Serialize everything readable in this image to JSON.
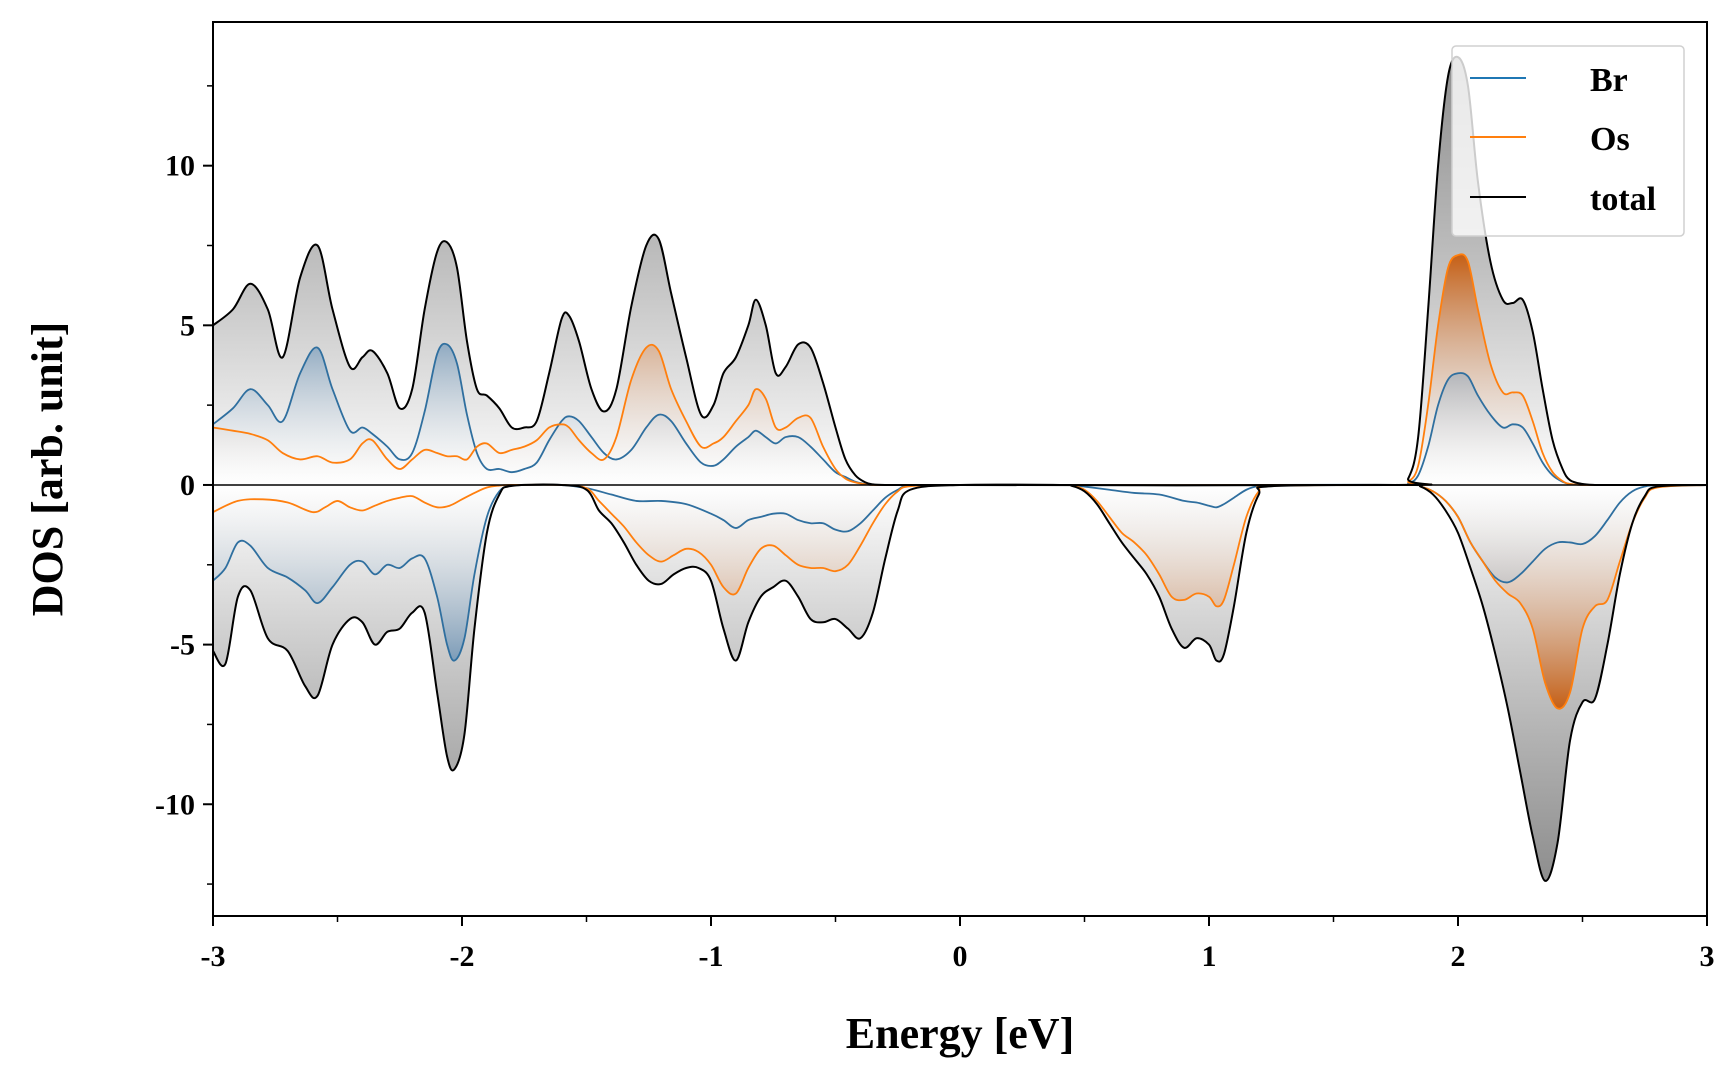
{
  "chart_data": {
    "type": "area",
    "xlabel": "Energy [eV]",
    "ylabel": "DOS [arb. unit]",
    "xlim": [
      -3,
      3
    ],
    "ylim": [
      -13.5,
      14.5
    ],
    "xticks": [
      -3,
      -2,
      -1,
      0,
      1,
      2,
      3
    ],
    "xtick_labels": [
      "-3",
      "-2",
      "-1",
      "0",
      "1",
      "2",
      "3"
    ],
    "yticks": [
      -10,
      -5,
      0,
      5,
      10
    ],
    "ytick_labels": [
      "-10",
      "-5",
      "0",
      "5",
      "10"
    ],
    "grid": false,
    "legend": {
      "placement": "top-right",
      "entries": [
        {
          "label": "Br",
          "color": "#1f77b4"
        },
        {
          "label": "Os",
          "color": "#ff7f0e"
        },
        {
          "label": "total",
          "color": "#000000"
        }
      ]
    },
    "series": [
      {
        "name": "Br",
        "color": "#1f77b4",
        "fill": "#5b8fb8",
        "spin": "up",
        "x": [
          -3.0,
          -2.92,
          -2.85,
          -2.78,
          -2.72,
          -2.65,
          -2.58,
          -2.52,
          -2.45,
          -2.4,
          -2.36,
          -2.3,
          -2.25,
          -2.2,
          -2.15,
          -2.1,
          -2.06,
          -2.02,
          -1.98,
          -1.94,
          -1.9,
          -1.85,
          -1.8,
          -1.75,
          -1.7,
          -1.65,
          -1.6,
          -1.57,
          -1.53,
          -1.48,
          -1.43,
          -1.38,
          -1.32,
          -1.26,
          -1.21,
          -1.16,
          -1.1,
          -1.04,
          -0.99,
          -0.95,
          -0.9,
          -0.85,
          -0.82,
          -0.78,
          -0.74,
          -0.7,
          -0.65,
          -0.6,
          -0.55,
          -0.5,
          -0.46,
          -0.42,
          -0.38,
          -0.35,
          -0.3,
          -0.25,
          -0.2,
          0.0,
          1.75,
          1.8,
          1.84,
          1.88,
          1.92,
          1.96,
          2.0,
          2.04,
          2.08,
          2.13,
          2.18,
          2.22,
          2.26,
          2.3,
          2.34,
          2.38,
          2.42,
          2.45,
          2.5,
          2.55,
          2.6,
          3.0
        ],
        "y": [
          1.9,
          2.4,
          3.0,
          2.5,
          2.0,
          3.5,
          4.3,
          3.0,
          1.7,
          1.8,
          1.6,
          1.2,
          0.8,
          1.0,
          2.3,
          4.1,
          4.4,
          3.8,
          2.2,
          1.0,
          0.5,
          0.5,
          0.4,
          0.5,
          0.7,
          1.4,
          2.0,
          2.15,
          2.0,
          1.5,
          1.0,
          0.8,
          1.1,
          1.8,
          2.2,
          2.0,
          1.3,
          0.7,
          0.6,
          0.8,
          1.2,
          1.5,
          1.7,
          1.5,
          1.3,
          1.5,
          1.5,
          1.2,
          0.8,
          0.4,
          0.25,
          0.1,
          0.03,
          0.0,
          0.0,
          0.0,
          0.0,
          0.0,
          0.0,
          0.05,
          0.3,
          1.2,
          2.5,
          3.3,
          3.5,
          3.4,
          2.8,
          2.2,
          1.8,
          1.9,
          1.8,
          1.3,
          0.7,
          0.3,
          0.1,
          0.03,
          0.0,
          0.0,
          0.0,
          0.0
        ]
      },
      {
        "name": "Os",
        "color": "#ff7f0e",
        "fill": "#d2691e",
        "spin": "up",
        "x": [
          -3.0,
          -2.92,
          -2.85,
          -2.78,
          -2.72,
          -2.65,
          -2.58,
          -2.52,
          -2.45,
          -2.4,
          -2.36,
          -2.3,
          -2.25,
          -2.2,
          -2.15,
          -2.1,
          -2.06,
          -2.02,
          -1.98,
          -1.94,
          -1.9,
          -1.85,
          -1.8,
          -1.75,
          -1.7,
          -1.65,
          -1.6,
          -1.57,
          -1.53,
          -1.48,
          -1.43,
          -1.38,
          -1.32,
          -1.26,
          -1.21,
          -1.16,
          -1.1,
          -1.04,
          -0.99,
          -0.95,
          -0.9,
          -0.85,
          -0.82,
          -0.78,
          -0.74,
          -0.7,
          -0.65,
          -0.6,
          -0.55,
          -0.5,
          -0.46,
          -0.42,
          -0.38,
          -0.35,
          -0.3,
          -0.25,
          -0.2,
          0.0,
          1.75,
          1.8,
          1.84,
          1.88,
          1.92,
          1.96,
          2.0,
          2.04,
          2.08,
          2.13,
          2.18,
          2.22,
          2.26,
          2.3,
          2.34,
          2.38,
          2.42,
          2.45,
          2.5,
          2.55,
          2.6,
          3.0
        ],
        "y": [
          1.8,
          1.7,
          1.6,
          1.4,
          1.0,
          0.8,
          0.9,
          0.7,
          0.8,
          1.3,
          1.4,
          0.8,
          0.5,
          0.8,
          1.1,
          1.0,
          0.9,
          0.9,
          0.8,
          1.2,
          1.3,
          1.0,
          1.1,
          1.2,
          1.4,
          1.8,
          1.9,
          1.8,
          1.4,
          1.0,
          0.8,
          1.5,
          3.3,
          4.3,
          4.2,
          3.0,
          2.0,
          1.2,
          1.3,
          1.5,
          2.0,
          2.5,
          3.0,
          2.7,
          1.8,
          1.8,
          2.1,
          2.1,
          1.2,
          0.5,
          0.2,
          0.08,
          0.02,
          0.0,
          0.0,
          0.0,
          0.0,
          0.0,
          0.0,
          0.1,
          0.6,
          2.5,
          5.0,
          6.8,
          7.2,
          7.0,
          5.5,
          3.8,
          2.9,
          2.9,
          2.8,
          2.0,
          1.0,
          0.4,
          0.12,
          0.03,
          0.0,
          0.0,
          0.0,
          0.0
        ]
      },
      {
        "name": "total",
        "color": "#000000",
        "fill": "#8c8c8c",
        "spin": "up",
        "x": [
          -3.0,
          -2.92,
          -2.85,
          -2.78,
          -2.72,
          -2.65,
          -2.58,
          -2.52,
          -2.45,
          -2.4,
          -2.36,
          -2.3,
          -2.25,
          -2.2,
          -2.15,
          -2.1,
          -2.06,
          -2.02,
          -1.98,
          -1.94,
          -1.9,
          -1.85,
          -1.8,
          -1.75,
          -1.7,
          -1.65,
          -1.6,
          -1.57,
          -1.53,
          -1.48,
          -1.43,
          -1.38,
          -1.32,
          -1.26,
          -1.21,
          -1.16,
          -1.1,
          -1.04,
          -0.99,
          -0.95,
          -0.9,
          -0.85,
          -0.82,
          -0.78,
          -0.74,
          -0.7,
          -0.65,
          -0.6,
          -0.55,
          -0.5,
          -0.46,
          -0.42,
          -0.38,
          -0.35,
          -0.3,
          -0.25,
          -0.2,
          0.0,
          1.75,
          1.8,
          1.84,
          1.88,
          1.92,
          1.96,
          2.0,
          2.04,
          2.08,
          2.13,
          2.18,
          2.22,
          2.26,
          2.3,
          2.34,
          2.38,
          2.42,
          2.45,
          2.5,
          2.55,
          2.6,
          3.0
        ],
        "y": [
          5.0,
          5.5,
          6.3,
          5.5,
          4.0,
          6.5,
          7.5,
          5.5,
          3.7,
          4.0,
          4.2,
          3.5,
          2.4,
          3.0,
          5.5,
          7.3,
          7.6,
          6.8,
          4.5,
          3.0,
          2.8,
          2.4,
          1.8,
          1.8,
          2.0,
          3.5,
          5.2,
          5.3,
          4.5,
          3.0,
          2.3,
          3.0,
          5.6,
          7.5,
          7.7,
          6.0,
          4.0,
          2.2,
          2.5,
          3.5,
          4.0,
          5.0,
          5.8,
          5.0,
          3.5,
          3.7,
          4.4,
          4.3,
          3.2,
          1.8,
          0.8,
          0.3,
          0.08,
          0.02,
          0.0,
          0.0,
          0.0,
          0.0,
          0.0,
          0.2,
          1.5,
          5.5,
          10.0,
          12.8,
          13.4,
          12.5,
          9.5,
          7.0,
          5.8,
          5.7,
          5.8,
          4.8,
          3.0,
          1.4,
          0.5,
          0.15,
          0.03,
          0.0,
          0.0,
          0.0
        ]
      },
      {
        "name": "Br",
        "color": "#1f77b4",
        "fill": "#5b8fb8",
        "spin": "down",
        "x": [
          -3.0,
          -2.95,
          -2.9,
          -2.85,
          -2.78,
          -2.7,
          -2.63,
          -2.58,
          -2.52,
          -2.45,
          -2.4,
          -2.35,
          -2.3,
          -2.25,
          -2.2,
          -2.15,
          -2.1,
          -2.06,
          -2.03,
          -1.99,
          -1.95,
          -1.9,
          -1.85,
          -1.8,
          -1.7,
          -1.6,
          -1.5,
          -1.4,
          -1.3,
          -1.2,
          -1.1,
          -1.0,
          -0.95,
          -0.9,
          -0.85,
          -0.8,
          -0.75,
          -0.7,
          -0.65,
          -0.6,
          -0.55,
          -0.5,
          -0.45,
          -0.4,
          -0.35,
          -0.3,
          -0.25,
          -0.2,
          0.0,
          0.4,
          0.45,
          0.5,
          0.6,
          0.7,
          0.8,
          0.9,
          0.95,
          1.0,
          1.03,
          1.06,
          1.1,
          1.15,
          1.2,
          1.25,
          1.8,
          1.85,
          1.9,
          1.95,
          2.0,
          2.05,
          2.1,
          2.15,
          2.2,
          2.25,
          2.3,
          2.35,
          2.4,
          2.45,
          2.5,
          2.55,
          2.6,
          2.65,
          2.7,
          2.75,
          2.8,
          3.0
        ],
        "y": [
          -3.0,
          -2.6,
          -1.8,
          -1.9,
          -2.6,
          -2.9,
          -3.3,
          -3.7,
          -3.2,
          -2.5,
          -2.4,
          -2.8,
          -2.5,
          -2.6,
          -2.3,
          -2.3,
          -3.5,
          -5.0,
          -5.5,
          -4.8,
          -2.8,
          -1.0,
          -0.2,
          -0.02,
          0.0,
          0.0,
          -0.1,
          -0.3,
          -0.5,
          -0.5,
          -0.6,
          -0.9,
          -1.1,
          -1.35,
          -1.1,
          -1.0,
          -0.9,
          -0.9,
          -1.1,
          -1.2,
          -1.2,
          -1.4,
          -1.45,
          -1.2,
          -0.8,
          -0.4,
          -0.15,
          -0.02,
          0.0,
          0.0,
          0.0,
          -0.05,
          -0.15,
          -0.25,
          -0.3,
          -0.5,
          -0.55,
          -0.65,
          -0.7,
          -0.6,
          -0.4,
          -0.15,
          -0.03,
          0.0,
          0.0,
          -0.05,
          -0.2,
          -0.5,
          -1.0,
          -1.8,
          -2.4,
          -2.9,
          -3.05,
          -2.8,
          -2.4,
          -2.0,
          -1.8,
          -1.8,
          -1.85,
          -1.6,
          -1.1,
          -0.55,
          -0.2,
          -0.05,
          -0.01,
          0.0
        ]
      },
      {
        "name": "Os",
        "color": "#ff7f0e",
        "fill": "#d2691e",
        "spin": "down",
        "x": [
          -3.0,
          -2.9,
          -2.8,
          -2.7,
          -2.6,
          -2.55,
          -2.5,
          -2.45,
          -2.4,
          -2.35,
          -2.3,
          -2.25,
          -2.2,
          -2.15,
          -2.1,
          -2.05,
          -2.0,
          -1.95,
          -1.9,
          -1.85,
          -1.8,
          -1.6,
          -1.5,
          -1.45,
          -1.4,
          -1.35,
          -1.3,
          -1.25,
          -1.2,
          -1.15,
          -1.1,
          -1.05,
          -1.0,
          -0.95,
          -0.9,
          -0.85,
          -0.8,
          -0.75,
          -0.7,
          -0.65,
          -0.6,
          -0.55,
          -0.5,
          -0.45,
          -0.4,
          -0.35,
          -0.3,
          -0.25,
          -0.2,
          0.0,
          0.4,
          0.45,
          0.5,
          0.55,
          0.6,
          0.65,
          0.7,
          0.75,
          0.8,
          0.85,
          0.9,
          0.95,
          1.0,
          1.03,
          1.06,
          1.1,
          1.15,
          1.2,
          1.25,
          1.8,
          1.85,
          1.9,
          1.95,
          2.0,
          2.05,
          2.1,
          2.15,
          2.2,
          2.25,
          2.3,
          2.35,
          2.4,
          2.45,
          2.5,
          2.55,
          2.6,
          2.65,
          2.7,
          2.75,
          2.8,
          3.0
        ],
        "y": [
          -0.85,
          -0.5,
          -0.45,
          -0.55,
          -0.85,
          -0.7,
          -0.5,
          -0.7,
          -0.8,
          -0.65,
          -0.5,
          -0.4,
          -0.35,
          -0.55,
          -0.7,
          -0.65,
          -0.45,
          -0.25,
          -0.08,
          -0.02,
          0.0,
          0.0,
          -0.1,
          -0.5,
          -0.9,
          -1.3,
          -1.8,
          -2.2,
          -2.4,
          -2.2,
          -2.0,
          -2.1,
          -2.5,
          -3.2,
          -3.4,
          -2.6,
          -2.0,
          -1.9,
          -2.2,
          -2.5,
          -2.6,
          -2.6,
          -2.7,
          -2.5,
          -1.9,
          -1.2,
          -0.6,
          -0.2,
          -0.04,
          0.0,
          0.0,
          -0.02,
          -0.15,
          -0.5,
          -1.0,
          -1.5,
          -1.8,
          -2.2,
          -2.8,
          -3.5,
          -3.6,
          -3.4,
          -3.5,
          -3.8,
          -3.6,
          -2.5,
          -1.0,
          -0.2,
          -0.03,
          0.0,
          -0.05,
          -0.2,
          -0.5,
          -1.0,
          -1.8,
          -2.4,
          -3.0,
          -3.4,
          -3.7,
          -4.5,
          -6.2,
          -7.0,
          -6.5,
          -4.5,
          -3.8,
          -3.6,
          -2.4,
          -1.2,
          -0.4,
          -0.08,
          0.0
        ]
      },
      {
        "name": "total",
        "color": "#000000",
        "fill": "#8c8c8c",
        "spin": "down",
        "x": [
          -3.0,
          -2.95,
          -2.9,
          -2.85,
          -2.78,
          -2.7,
          -2.63,
          -2.58,
          -2.52,
          -2.45,
          -2.4,
          -2.35,
          -2.3,
          -2.25,
          -2.2,
          -2.15,
          -2.1,
          -2.06,
          -2.03,
          -1.99,
          -1.95,
          -1.9,
          -1.85,
          -1.8,
          -1.6,
          -1.5,
          -1.45,
          -1.4,
          -1.35,
          -1.3,
          -1.25,
          -1.2,
          -1.15,
          -1.1,
          -1.05,
          -1.0,
          -0.95,
          -0.9,
          -0.85,
          -0.8,
          -0.75,
          -0.7,
          -0.65,
          -0.6,
          -0.55,
          -0.5,
          -0.45,
          -0.4,
          -0.35,
          -0.3,
          -0.25,
          -0.2,
          0.0,
          0.4,
          0.45,
          0.5,
          0.55,
          0.6,
          0.65,
          0.7,
          0.75,
          0.8,
          0.85,
          0.9,
          0.95,
          1.0,
          1.03,
          1.06,
          1.1,
          1.15,
          1.2,
          1.25,
          1.8,
          1.85,
          1.9,
          1.95,
          2.0,
          2.05,
          2.1,
          2.15,
          2.2,
          2.25,
          2.3,
          2.35,
          2.4,
          2.45,
          2.5,
          2.55,
          2.6,
          2.65,
          2.7,
          2.75,
          2.8,
          3.0
        ],
        "y": [
          -5.2,
          -5.6,
          -3.5,
          -3.3,
          -4.8,
          -5.2,
          -6.3,
          -6.6,
          -5.0,
          -4.2,
          -4.3,
          -5.0,
          -4.6,
          -4.5,
          -4.0,
          -4.0,
          -6.5,
          -8.5,
          -8.9,
          -7.8,
          -4.5,
          -1.5,
          -0.3,
          -0.03,
          0.0,
          -0.15,
          -0.8,
          -1.2,
          -1.8,
          -2.5,
          -3.0,
          -3.1,
          -2.8,
          -2.6,
          -2.6,
          -3.0,
          -4.5,
          -5.5,
          -4.3,
          -3.5,
          -3.2,
          -3.0,
          -3.5,
          -4.2,
          -4.3,
          -4.2,
          -4.5,
          -4.8,
          -4.0,
          -2.3,
          -0.8,
          -0.15,
          0.0,
          0.0,
          -0.03,
          -0.2,
          -0.6,
          -1.2,
          -1.8,
          -2.3,
          -2.8,
          -3.5,
          -4.5,
          -5.1,
          -4.8,
          -5.0,
          -5.5,
          -5.3,
          -3.8,
          -1.5,
          -0.3,
          -0.04,
          0.0,
          -0.05,
          -0.3,
          -0.8,
          -1.5,
          -2.6,
          -3.8,
          -5.3,
          -7.0,
          -9.0,
          -11.0,
          -12.4,
          -11.2,
          -8.0,
          -6.8,
          -6.7,
          -5.0,
          -2.8,
          -1.2,
          -0.35,
          -0.05,
          0.0
        ]
      }
    ]
  }
}
